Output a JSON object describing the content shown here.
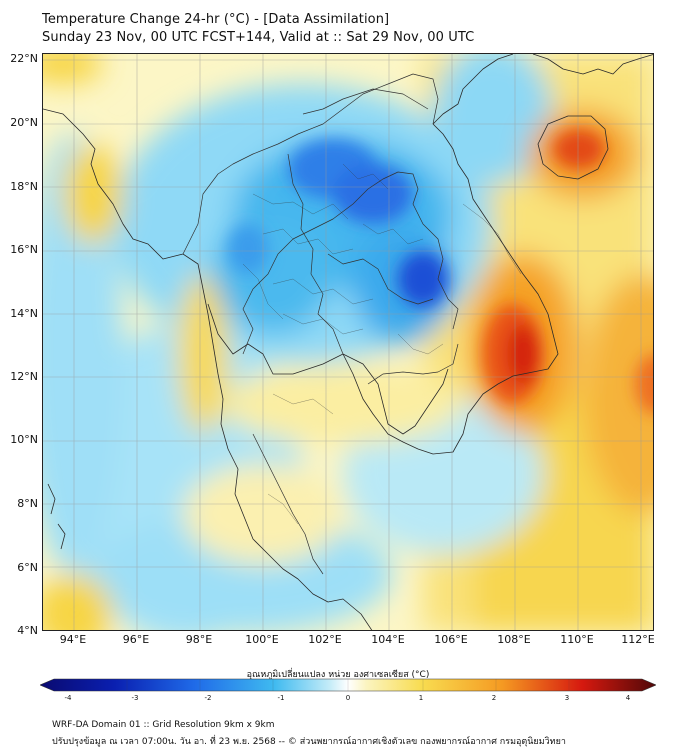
{
  "header": {
    "title": "Temperature Change 24-hr (°C) - [Data Assimilation]",
    "subtitle": "Sunday 23 Nov, 00 UTC FCST+144, Valid at :: Sat 29 Nov, 00 UTC"
  },
  "map": {
    "y_ticks": [
      "22°N",
      "20°N",
      "18°N",
      "16°N",
      "14°N",
      "12°N",
      "10°N",
      "8°N",
      "6°N",
      "4°N"
    ],
    "x_ticks": [
      "94°E",
      "96°E",
      "98°E",
      "100°E",
      "102°E",
      "104°E",
      "106°E",
      "108°E",
      "110°E",
      "112°E"
    ],
    "lat_range": [
      4,
      22
    ],
    "lon_range": [
      93,
      112.5
    ]
  },
  "colorbar": {
    "title": "อุณหภูมิเปลี่ยนแปลง หน่วย องศาเซลเซียส (°C)",
    "ticks": [
      "-4",
      "-3",
      "-2",
      "-1",
      "0",
      "1",
      "2",
      "3",
      "4"
    ],
    "range": [
      -4,
      4
    ]
  },
  "footer": {
    "line1": "WRF-DA Domain 01 :: Grid Resolution 9km x 9km",
    "line2": "ปรับปรุงข้อมูล ณ เวลา 07:00น. วัน อา. ที่ 23 พ.ย. 2568 -- © ส่วนพยากรณ์อากาศเชิงตัวเลข กองพยากรณ์อากาศ กรมอุตุนิยมวิทยา"
  },
  "colors": {
    "deep_blue": "#0a1a9a",
    "blue": "#1f5fe8",
    "light_blue": "#59c8f2",
    "pale_blue": "#a9e4f8",
    "pale_yellow": "#fbf4c0",
    "yellow": "#f7d23c",
    "orange": "#f49a20",
    "red": "#d8190f",
    "dark_red": "#5a0a0a"
  }
}
